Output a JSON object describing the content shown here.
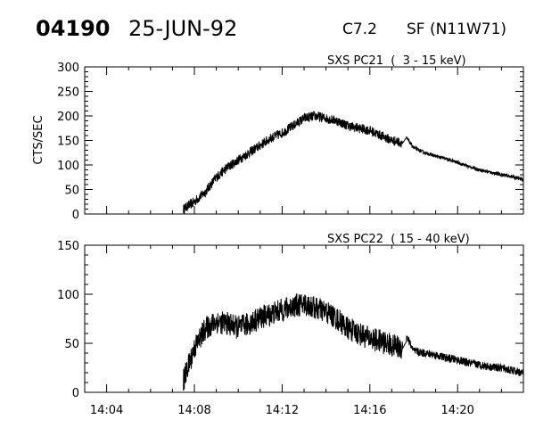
{
  "header": {
    "event_id": "04190",
    "date": "25-JUN-92",
    "goes_class": "C7.2",
    "location": "SF (N11W71)"
  },
  "chart_data": [
    {
      "type": "line",
      "title": "SXS PC21  (  3 - 15 keV)",
      "ylabel": "CTS/SEC",
      "xlabel": "",
      "xlim": [
        "14:03:00",
        "14:23:00"
      ],
      "ylim": [
        0,
        300
      ],
      "yticks": [
        0,
        50,
        100,
        150,
        200,
        250,
        300
      ],
      "grid": false,
      "series": [
        {
          "x": [
            "14:07:30",
            "14:08:00",
            "14:08:30",
            "14:09:00",
            "14:09:30",
            "14:10:00",
            "14:10:30",
            "14:11:00",
            "14:11:30",
            "14:12:00",
            "14:12:30",
            "14:13:00",
            "14:13:30",
            "14:14:00",
            "14:14:30",
            "14:15:00",
            "14:15:30",
            "14:16:00",
            "14:16:30",
            "14:17:00",
            "14:17:30",
            "14:17:40",
            "14:18:00",
            "14:18:30",
            "14:19:00",
            "14:19:30",
            "14:20:00",
            "14:20:30",
            "14:21:00",
            "14:21:30",
            "14:22:00",
            "14:22:30",
            "14:23:00"
          ],
          "values": [
            10,
            25,
            45,
            75,
            95,
            110,
            125,
            140,
            155,
            165,
            180,
            195,
            200,
            195,
            190,
            180,
            175,
            170,
            160,
            150,
            145,
            155,
            135,
            125,
            118,
            112,
            105,
            97,
            90,
            85,
            80,
            76,
            70
          ],
          "noise": 10
        }
      ]
    },
    {
      "type": "line",
      "title": "SXS PC22  ( 15 - 40 keV)",
      "ylabel": "",
      "xlabel": "",
      "xlim": [
        "14:03:00",
        "14:23:00"
      ],
      "ylim": [
        0,
        150
      ],
      "yticks": [
        0,
        50,
        100,
        150
      ],
      "xticks": [
        "14:04",
        "14:08",
        "14:12",
        "14:16",
        "14:20"
      ],
      "grid": false,
      "series": [
        {
          "x": [
            "14:07:30",
            "14:08:00",
            "14:08:30",
            "14:09:00",
            "14:09:30",
            "14:10:00",
            "14:10:30",
            "14:11:00",
            "14:11:30",
            "14:12:00",
            "14:12:30",
            "14:13:00",
            "14:13:30",
            "14:14:00",
            "14:14:30",
            "14:15:00",
            "14:15:30",
            "14:16:00",
            "14:16:30",
            "14:17:00",
            "14:17:30",
            "14:17:40",
            "14:18:00",
            "14:18:30",
            "14:19:00",
            "14:19:30",
            "14:20:00",
            "14:20:30",
            "14:21:00",
            "14:21:30",
            "14:22:00",
            "14:22:30",
            "14:23:00"
          ],
          "values": [
            12,
            45,
            65,
            72,
            70,
            66,
            70,
            76,
            80,
            84,
            88,
            90,
            86,
            82,
            75,
            65,
            60,
            55,
            52,
            48,
            45,
            58,
            42,
            40,
            38,
            35,
            33,
            30,
            28,
            26,
            25,
            22,
            20
          ],
          "noise": 12
        }
      ]
    }
  ]
}
